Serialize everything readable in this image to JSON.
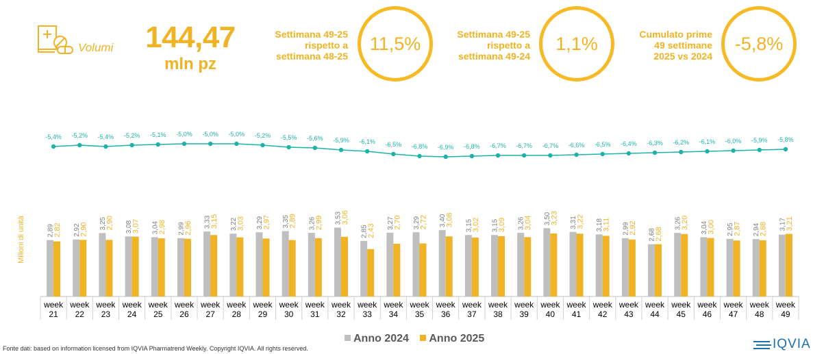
{
  "kpi": {
    "label": "Volumi",
    "value": "144,47",
    "unit": "mln pz",
    "icon": "medicine-pills-icon"
  },
  "stats": [
    {
      "text": [
        "Settimana 49-25",
        "rispetto a",
        "settimana 48-25"
      ],
      "value": "11,5%"
    },
    {
      "text": [
        "Settimana 49-25",
        "rispetto a",
        "settimana 49-24"
      ],
      "value": "1,1%"
    },
    {
      "text": [
        "Cumulato prime",
        "49 settimane",
        "2025 vs 2024"
      ],
      "value": "-5,8%"
    }
  ],
  "source": "Fonte dati: based on information licensed from IQVIA Pharmatrend Weekly. Copyright IQVIA. All rights reserved.",
  "logo": "IQVIA",
  "colors": {
    "accent": "#f0b323",
    "bar2024": "#bfbfbf",
    "bar2025": "#f0b323",
    "line": "#1bb3a8"
  },
  "chart_data": {
    "type": "bar",
    "ylabel": "Milioni di unità",
    "categories": [
      "week 21",
      "week 22",
      "week 23",
      "week 24",
      "week 25",
      "week 26",
      "week 27",
      "week 28",
      "week 29",
      "week 30",
      "week 31",
      "week 32",
      "week 33",
      "week 34",
      "week 35",
      "week 36",
      "week 37",
      "week 38",
      "week 39",
      "week 40",
      "week 41",
      "week 42",
      "week 43",
      "week 44",
      "week 45",
      "week 46",
      "week 47",
      "week 48",
      "week 49"
    ],
    "series": [
      {
        "name": "Anno 2024",
        "values": [
          2.89,
          2.92,
          3.25,
          3.08,
          3.04,
          2.99,
          3.33,
          3.22,
          3.29,
          3.35,
          3.26,
          3.53,
          2.85,
          3.27,
          3.29,
          3.4,
          3.15,
          3.15,
          3.26,
          3.5,
          3.31,
          3.18,
          2.99,
          2.68,
          3.26,
          3.04,
          2.95,
          2.94,
          3.17
        ],
        "labels": [
          "2,89",
          "2,92",
          "3,25",
          "3,08",
          "3,04",
          "2,99",
          "3,33",
          "3,22",
          "3,29",
          "3,35",
          "3,26",
          "3,53",
          "2,85",
          "3,27",
          "3,29",
          "3,40",
          "3,15",
          "3,15",
          "3,26",
          "3,50",
          "3,31",
          "3,18",
          "2,99",
          "2,68",
          "3,26",
          "3,04",
          "2,95",
          "2,94",
          "3,17"
        ]
      },
      {
        "name": "Anno 2025",
        "values": [
          2.82,
          2.9,
          2.9,
          3.07,
          2.98,
          2.96,
          3.15,
          3.03,
          2.97,
          2.89,
          2.99,
          3.06,
          2.43,
          2.7,
          2.72,
          3.08,
          3.02,
          3.09,
          3.04,
          3.23,
          3.22,
          3.11,
          2.92,
          2.68,
          3.2,
          3.0,
          2.87,
          2.88,
          3.21
        ],
        "labels": [
          "2,82",
          "2,90",
          "2,90",
          "3,07",
          "2,98",
          "2,96",
          "3,15",
          "3,03",
          "2,97",
          "2,89",
          "2,99",
          "3,06",
          "2,43",
          "2,70",
          "2,72",
          "3,08",
          "3,02",
          "3,09",
          "3,04",
          "3,23",
          "3,22",
          "3,11",
          "2,92",
          "2,68",
          "3,20",
          "3,00",
          "2,87",
          "2,88",
          "3,21"
        ]
      }
    ],
    "cumulative_change": {
      "values": [
        -5.4,
        -5.2,
        -5.4,
        -5.2,
        -5.1,
        -5.0,
        -5.0,
        -5.0,
        -5.2,
        -5.5,
        -5.6,
        -5.9,
        -6.1,
        -6.5,
        -6.8,
        -6.9,
        -6.8,
        -6.7,
        -6.7,
        -6.7,
        -6.6,
        -6.5,
        -6.4,
        -6.3,
        -6.2,
        -6.1,
        -6.0,
        -5.9,
        -5.8
      ],
      "labels": [
        "-5,4%",
        "-5,2%",
        "-5,4%",
        "-5,2%",
        "-5,1%",
        "-5,0%",
        "-5,0%",
        "-5,0%",
        "-5,2%",
        "-5,5%",
        "-5,6%",
        "-5,9%",
        "-6,1%",
        "-6,5%",
        "-6,8%",
        "-6,9%",
        "-6,8%",
        "-6,7%",
        "-6,7%",
        "-6,7%",
        "-6,6%",
        "-6,5%",
        "-6,4%",
        "-6,3%",
        "-6,2%",
        "-6,1%",
        "-6,0%",
        "-5,9%",
        "-5,8%"
      ]
    },
    "legend": "bottom",
    "grid": false
  }
}
